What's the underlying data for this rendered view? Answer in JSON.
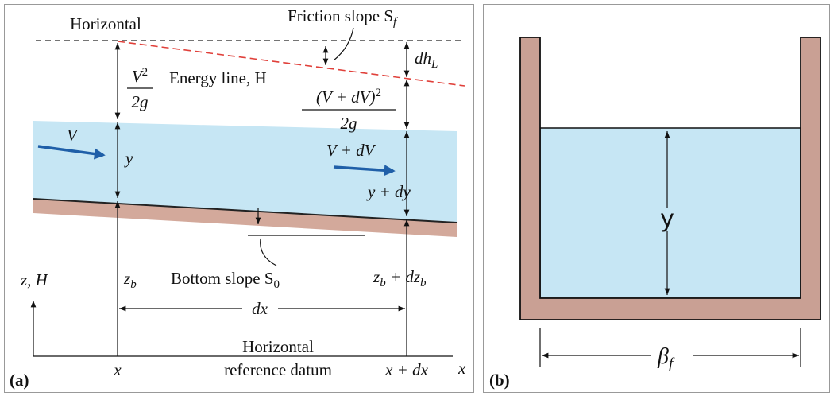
{
  "panel_a": {
    "label": "(a)",
    "horizontal_top": "Horizontal",
    "friction_slope": {
      "text": "Friction slope S",
      "sub": "f"
    },
    "head_loss": {
      "text": "dh",
      "sub": "L"
    },
    "velocity_head_1": {
      "numerator": "V",
      "power": "2",
      "denominator": "2g"
    },
    "energy_line": "Energy line, H",
    "velocity_head_2": {
      "numerator": "(V + dV)",
      "power": "2",
      "denominator": "2g"
    },
    "velocity_1": "V",
    "depth_1": "y",
    "velocity_2": "V + dV",
    "depth_2": "y + dy",
    "axis_label": "z, H",
    "bed_1": {
      "text": "z",
      "sub": "b"
    },
    "bottom_slope": {
      "text": "Bottom slope S",
      "sub": "0"
    },
    "bed_2": {
      "text": "z",
      "sub": "b",
      "plus": " + dz",
      "sub2": "b"
    },
    "dx": "dx",
    "datum_1": "Horizontal",
    "datum_2": "reference datum",
    "x_1": "x",
    "x_2": "x + dx",
    "x_axis": "x"
  },
  "panel_b": {
    "label": "(b)",
    "depth": "y",
    "width": {
      "text": "β",
      "sub": "f"
    }
  }
}
